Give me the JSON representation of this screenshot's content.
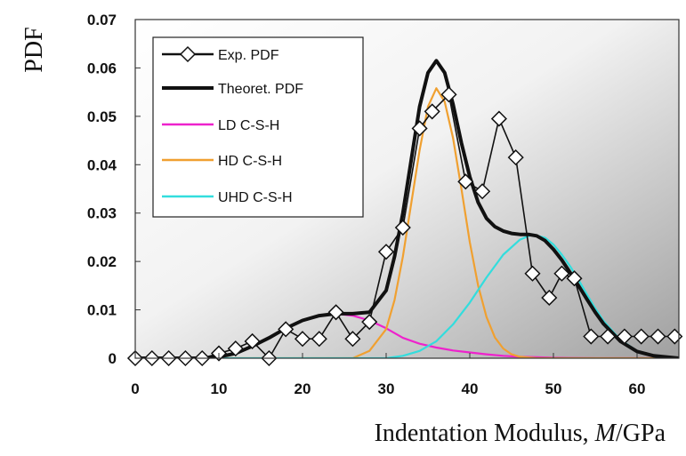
{
  "chart_data": {
    "type": "line",
    "xlabel_prefix": "Indentation Modulus, ",
    "xlabel_symbol": "M",
    "xlabel_suffix": "/GPa",
    "ylabel": "PDF",
    "xlim": [
      0,
      65
    ],
    "ylim": [
      0,
      0.07
    ],
    "xticks": [
      "0",
      "10",
      "20",
      "30",
      "40",
      "50",
      "60"
    ],
    "xtick_values": [
      0,
      10,
      20,
      30,
      40,
      50,
      60
    ],
    "yticks": [
      "0",
      "0.01",
      "0.02",
      "0.03",
      "0.04",
      "0.05",
      "0.06",
      "0.07"
    ],
    "ytick_values": [
      0,
      0.01,
      0.02,
      0.03,
      0.04,
      0.05,
      0.06,
      0.07
    ],
    "legend_position": "top-left",
    "background": "gradient-gray",
    "series": [
      {
        "name": "Exp. PDF",
        "color": "#111111",
        "marker": "diamond",
        "x": [
          0,
          2,
          4,
          6,
          8,
          10,
          12,
          14,
          16,
          18,
          20,
          22,
          24,
          26,
          28,
          30,
          32,
          34,
          35.5,
          37.5,
          39.5,
          41.5,
          43.5,
          45.5,
          47.5,
          49.5,
          51,
          52.5,
          54.5,
          56.5,
          58.5,
          60.5,
          62.5,
          64.5
        ],
        "y": [
          0,
          0,
          0,
          0,
          0,
          0.001,
          0.002,
          0.0035,
          0,
          0.006,
          0.004,
          0.004,
          0.0095,
          0.004,
          0.0075,
          0.022,
          0.027,
          0.0475,
          0.051,
          0.0545,
          0.0365,
          0.0345,
          0.0495,
          0.0415,
          0.0175,
          0.0125,
          0.0175,
          0.0165,
          0.0045,
          0.0045,
          0.0045,
          0.0045,
          0.0045,
          0.0045
        ]
      },
      {
        "name": "Theoret. PDF",
        "color": "#111111",
        "x": [
          0,
          5,
          8,
          10,
          12,
          14,
          16,
          18,
          20,
          22,
          24,
          26,
          28,
          30,
          31,
          32,
          33,
          34,
          35,
          36,
          37,
          38,
          39,
          40,
          41,
          42,
          43,
          44,
          45,
          46,
          47,
          48,
          49,
          50,
          51,
          52,
          53,
          54,
          55,
          56,
          58,
          60,
          62,
          65
        ],
        "y": [
          0,
          0,
          0,
          0.0003,
          0.001,
          0.0025,
          0.0042,
          0.0062,
          0.0078,
          0.0088,
          0.0092,
          0.0092,
          0.0095,
          0.014,
          0.021,
          0.03,
          0.041,
          0.052,
          0.059,
          0.0615,
          0.059,
          0.0525,
          0.0445,
          0.0375,
          0.0322,
          0.0289,
          0.0272,
          0.0263,
          0.0258,
          0.0256,
          0.0256,
          0.0253,
          0.0243,
          0.0225,
          0.0203,
          0.0177,
          0.015,
          0.0122,
          0.0095,
          0.0071,
          0.0035,
          0.0014,
          0.0005,
          0
        ]
      },
      {
        "name": "LD C-S-H",
        "color": "#ee22cc",
        "x": [
          0,
          5,
          8,
          10,
          12,
          14,
          16,
          18,
          20,
          22,
          24,
          26,
          28,
          30,
          32,
          34,
          36,
          38,
          40,
          42,
          44,
          46,
          48,
          50,
          52,
          55,
          60,
          65
        ],
        "y": [
          0,
          0,
          0,
          0.0003,
          0.001,
          0.0025,
          0.0042,
          0.0062,
          0.0078,
          0.0088,
          0.0092,
          0.0088,
          0.0078,
          0.0062,
          0.0042,
          0.003,
          0.0022,
          0.0016,
          0.0012,
          0.0008,
          0.0005,
          0.0003,
          0.0002,
          0.0001,
          5e-05,
          0,
          0,
          0
        ]
      },
      {
        "name": "HD C-S-H",
        "color": "#f0a030",
        "x": [
          0,
          26,
          28,
          30,
          31,
          32,
          33,
          34,
          35,
          36,
          37,
          38,
          39,
          40,
          41,
          42,
          43,
          44,
          45,
          46,
          48,
          65
        ],
        "y": [
          0,
          0,
          0.0015,
          0.006,
          0.012,
          0.021,
          0.032,
          0.043,
          0.052,
          0.0558,
          0.053,
          0.0455,
          0.035,
          0.024,
          0.015,
          0.0085,
          0.0043,
          0.002,
          0.0008,
          0.0003,
          0,
          0
        ]
      },
      {
        "name": "UHD C-S-H",
        "color": "#33dddd",
        "x": [
          0,
          30,
          32,
          34,
          36,
          38,
          40,
          42,
          44,
          46,
          47.5,
          49,
          50,
          51,
          52,
          53,
          54,
          55,
          56,
          58,
          60,
          62,
          65
        ],
        "y": [
          0,
          0,
          0.0005,
          0.0015,
          0.0035,
          0.007,
          0.0115,
          0.0167,
          0.0214,
          0.0245,
          0.0256,
          0.0249,
          0.0235,
          0.0214,
          0.019,
          0.0162,
          0.0132,
          0.0103,
          0.0077,
          0.0038,
          0.0015,
          0.0005,
          0
        ]
      }
    ]
  }
}
